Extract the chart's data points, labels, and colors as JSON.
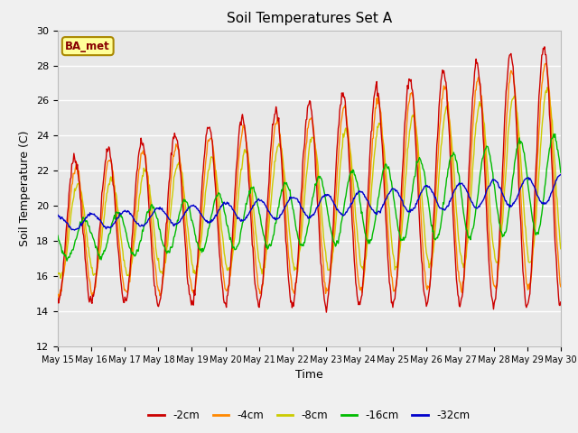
{
  "title": "Soil Temperatures Set A",
  "xlabel": "Time",
  "ylabel": "Soil Temperature (C)",
  "ylim": [
    12,
    30
  ],
  "annotation": "BA_met",
  "legend_labels": [
    "-2cm",
    "-4cm",
    "-8cm",
    "-16cm",
    "-32cm"
  ],
  "legend_colors": [
    "#cc0000",
    "#ff8800",
    "#cccc00",
    "#00bb00",
    "#0000cc"
  ],
  "x_tick_labels": [
    "May 15",
    "May 16",
    "May 17",
    "May 18",
    "May 19",
    "May 20",
    "May 21",
    "May 22",
    "May 23",
    "May 24",
    "May 25",
    "May 26",
    "May 27",
    "May 28",
    "May 29",
    "May 30"
  ],
  "fig_bg": "#f0f0f0",
  "ax_bg": "#e8e8e8",
  "grid_color": "#ffffff"
}
